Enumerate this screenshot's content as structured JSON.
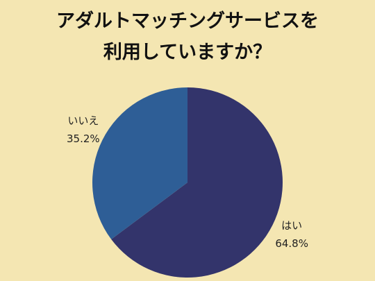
{
  "chart_data": {
    "type": "pie",
    "title": "アダルトマッチングサービスを\n利用していますか？",
    "categories": [
      "はい",
      "いいえ"
    ],
    "values": [
      64.8,
      35.2
    ],
    "value_labels": [
      "64.8%",
      "35.2%"
    ],
    "colors": [
      "#33346b",
      "#2e5e96"
    ]
  }
}
